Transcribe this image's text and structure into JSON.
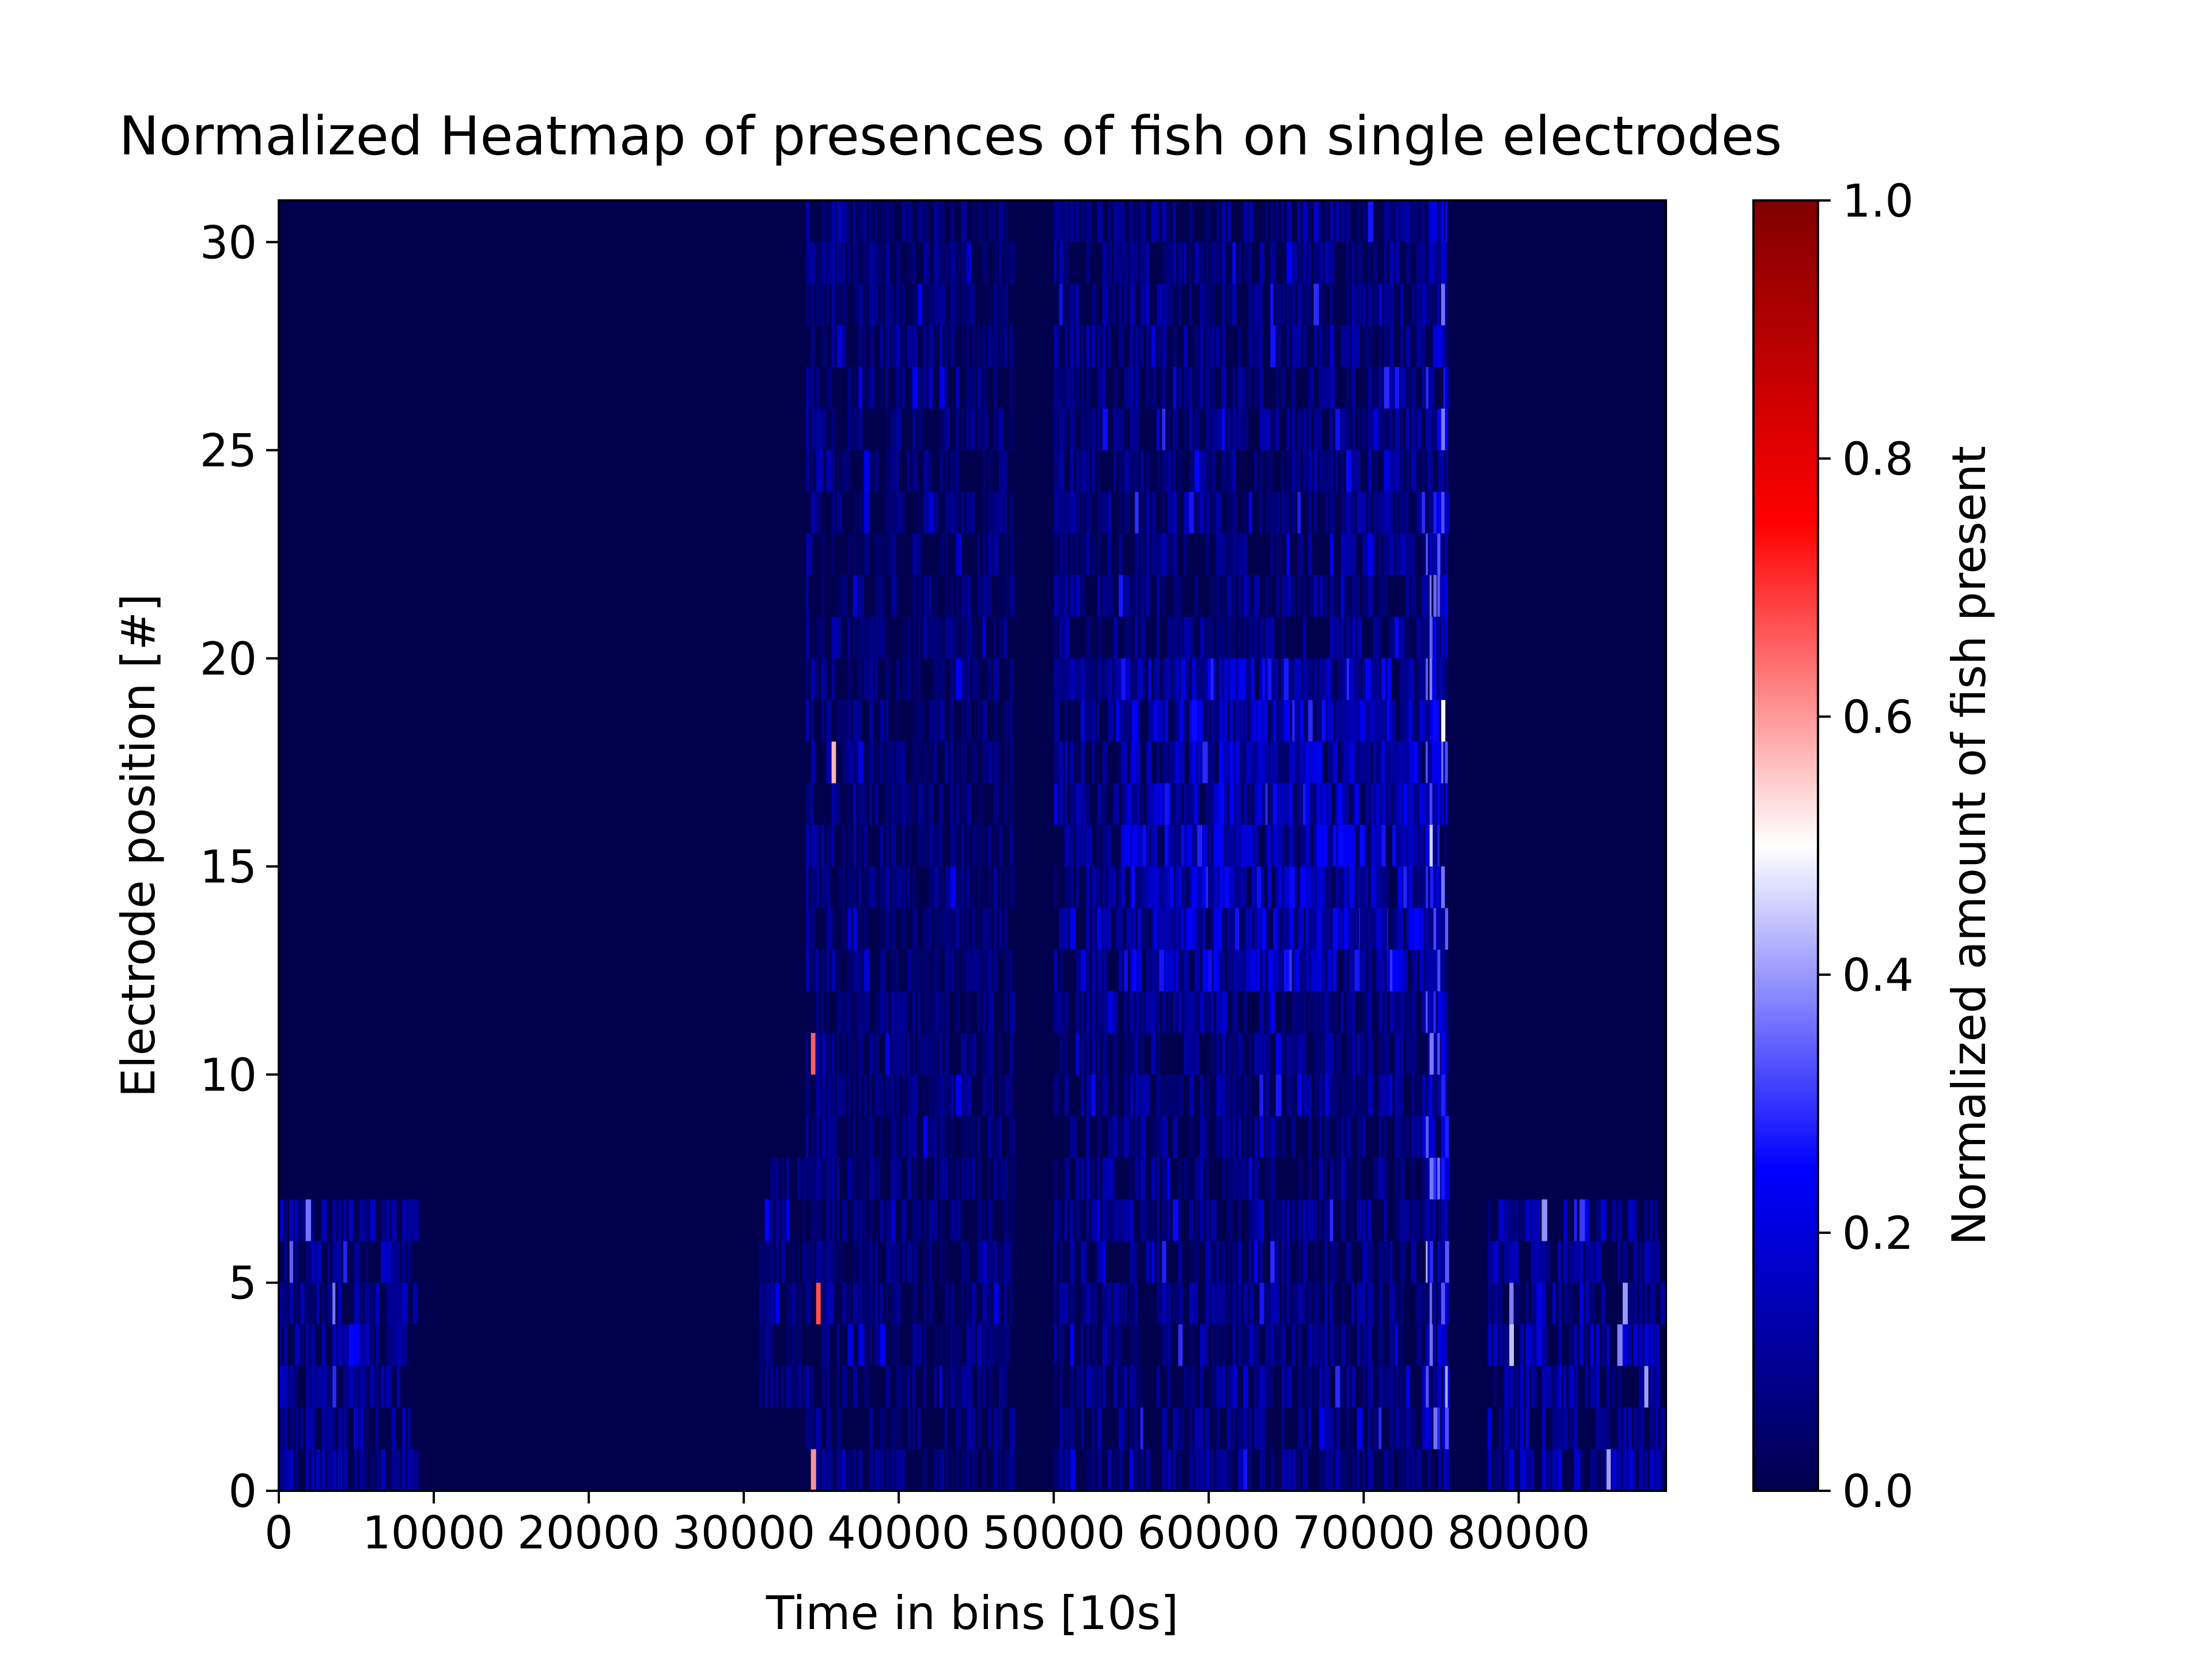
{
  "chart_data": {
    "type": "heatmap",
    "title": "Normalized Heatmap of presences of fish on single electrodes",
    "xlabel": "Time in bins [10s]",
    "ylabel": "Electrode position [#]",
    "xlim": [
      0,
      89500
    ],
    "ylim": [
      0,
      31
    ],
    "x_ticks": [
      0,
      10000,
      20000,
      30000,
      40000,
      50000,
      60000,
      70000,
      80000
    ],
    "x_tick_labels": [
      "0",
      "10000",
      "20000",
      "30000",
      "40000",
      "50000",
      "60000",
      "70000",
      "80000"
    ],
    "y_ticks": [
      0,
      5,
      10,
      15,
      20,
      25,
      30
    ],
    "y_tick_labels": [
      "0",
      "5",
      "10",
      "15",
      "20",
      "25",
      "30"
    ],
    "colorbar": {
      "label": "Normalized amount of fish present",
      "range": [
        0,
        1
      ],
      "ticks": [
        0.0,
        0.2,
        0.4,
        0.6,
        0.8,
        1.0
      ],
      "tick_labels": [
        "0.0",
        "0.2",
        "0.4",
        "0.6",
        "0.8",
        "1.0"
      ],
      "colormap": "seismic",
      "colors": [
        "#00004c",
        "#0000ff",
        "#ffffff",
        "#ff0000",
        "#800000"
      ]
    },
    "activity_regions": [
      {
        "t_start": 0,
        "t_end": 9000,
        "electrodes": [
          0,
          1,
          2,
          3,
          4,
          5,
          6
        ],
        "typical_value": 0.12,
        "peak_value": 0.38
      },
      {
        "t_start": 31000,
        "t_end": 34500,
        "electrodes": [
          2,
          3,
          4,
          5,
          6,
          7
        ],
        "typical_value": 0.08,
        "peak_value": 0.3
      },
      {
        "t_start": 34000,
        "t_end": 36000,
        "electrodes": [
          0,
          1,
          2,
          3,
          4,
          5,
          6,
          7,
          8,
          9,
          10,
          11,
          12,
          13,
          14,
          15,
          16,
          17,
          18,
          19,
          20,
          21,
          22,
          23,
          24,
          25,
          26,
          27,
          28,
          29,
          30
        ],
        "typical_value": 0.1,
        "peak_value": 0.7
      },
      {
        "t_start": 36000,
        "t_end": 47500,
        "electrodes": [
          0,
          1,
          2,
          3,
          4,
          5,
          6,
          7,
          8,
          9,
          10,
          11,
          12,
          13,
          14,
          15,
          16,
          17,
          18,
          19,
          20,
          21,
          22,
          23,
          24,
          25,
          26,
          27,
          28,
          29,
          30
        ],
        "typical_value": 0.08,
        "peak_value": 0.25
      },
      {
        "t_start": 50000,
        "t_end": 75500,
        "electrodes": [
          0,
          1,
          2,
          3,
          4,
          5,
          6,
          7,
          8,
          9,
          10,
          11,
          12,
          13,
          14,
          15,
          16,
          17,
          18,
          19,
          20,
          21,
          22,
          23,
          24,
          25,
          26,
          27,
          28,
          29,
          30
        ],
        "typical_value": 0.1,
        "peak_value": 0.3
      },
      {
        "t_start": 54000,
        "t_end": 75000,
        "electrodes": [
          12,
          13,
          14,
          15,
          16,
          17,
          18,
          19
        ],
        "typical_value": 0.18,
        "peak_value": 0.3
      },
      {
        "t_start": 74000,
        "t_end": 75500,
        "electrodes": [
          1,
          2,
          3,
          4,
          5,
          6,
          7,
          8,
          9,
          10,
          11,
          12,
          13,
          14,
          15,
          16,
          17,
          18,
          19,
          20,
          21,
          22,
          23,
          24,
          25,
          26,
          27,
          28,
          29,
          30
        ],
        "typical_value": 0.25,
        "peak_value": 0.55
      },
      {
        "t_start": 78000,
        "t_end": 89500,
        "electrodes": [
          0,
          1,
          2,
          3,
          4,
          5,
          6
        ],
        "typical_value": 0.14,
        "peak_value": 0.45
      }
    ],
    "grid": false,
    "legend": "colorbar-right"
  }
}
